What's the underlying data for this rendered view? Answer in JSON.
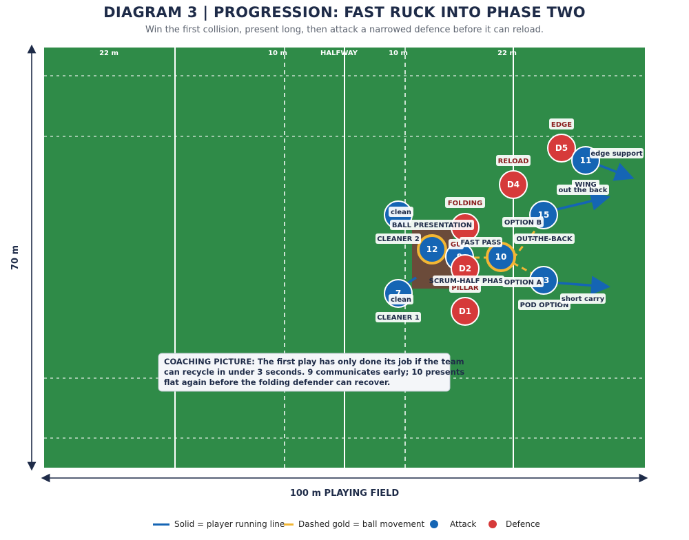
{
  "header": {
    "title": "DIAGRAM 3  |  PROGRESSION: FAST RUCK INTO PHASE TWO",
    "subtitle": "Win the first collision, present long, then attack a narrowed defence before it can reload."
  },
  "field": {
    "top_labels": {
      "left_22": "22 m",
      "left_10": "10 m",
      "halfway": "HALFWAY",
      "right_10": "10 m",
      "right_22": "22 m"
    },
    "width_label": "100 m PLAYING FIELD",
    "height_label": "70 m"
  },
  "players": {
    "attack": {
      "cleaner1": {
        "number": "7",
        "tag": "clean",
        "role": "CLEANER 1"
      },
      "cleaner2": {
        "number": "",
        "tag": "clean",
        "role": "CLEANER 2"
      },
      "carrier12": {
        "number": "12"
      },
      "scrumhalf": {
        "number": "9",
        "role": "SCRUM-HALF PHASE"
      },
      "flyhalf": {
        "number": "10"
      },
      "p15": {
        "number": "15",
        "role": "OUT-THE-BACK"
      },
      "p13": {
        "number": "13",
        "role": "POD OPTION"
      },
      "p11": {
        "number": "11",
        "role": "WING"
      }
    },
    "defence": {
      "d1": {
        "label": "D1"
      },
      "d2": {
        "label": "D2",
        "role": "PILLAR",
        "tag": "GU"
      },
      "d3": {
        "label": "",
        "role": "FOLDING"
      },
      "d4": {
        "label": "D4",
        "role": "RELOAD"
      },
      "d5": {
        "label": "D5",
        "role": "EDGE"
      }
    }
  },
  "annotations": {
    "ball_presentation": "BALL PRESENTATION",
    "fast_pass": "FAST PASS",
    "option_a": "OPTION A",
    "option_b": "OPTION B",
    "out_the_back": "out the back",
    "short_carry": "short carry",
    "edge_support": "edge support"
  },
  "coaching": {
    "line1": "COACHING PICTURE: The first play has only done its job if the team",
    "line2": "can recycle in under 3 seconds. 9 communicates early; 10 presents",
    "line3": "flat again before the folding defender can recover."
  },
  "legend": {
    "solid": "Solid = player running line",
    "dashed": "Dashed gold = ball movement",
    "attack": "Attack",
    "defence": "Defence"
  },
  "colors": {
    "field": "#2f8b48",
    "attack": "#1565b4",
    "defence": "#d63a3a",
    "ball": "#f2b634",
    "ruck": "#6b4b3a",
    "navy": "#1e2b48",
    "defence_label": "#8b1f1f"
  }
}
